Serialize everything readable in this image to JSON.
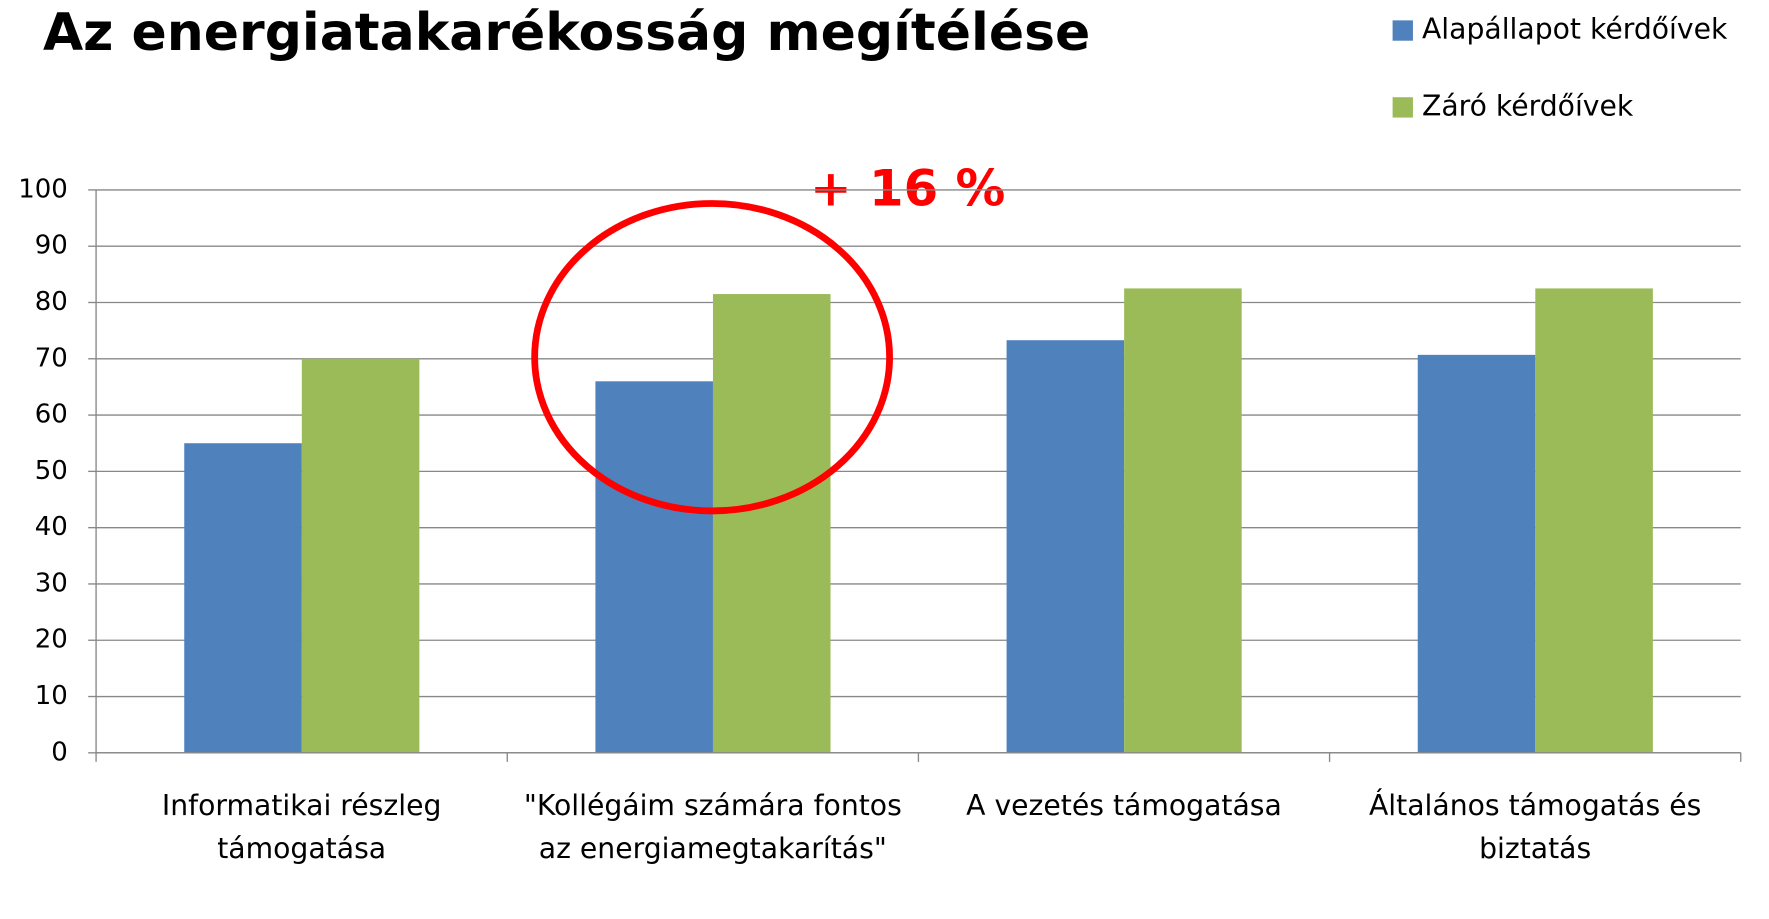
{
  "chart_data": {
    "type": "bar",
    "title": "Az energiatakarékosság megítélése",
    "annotation": "+ 16 %",
    "categories": [
      "Informatikai részleg támogatása",
      "\"Kollégáim számára fontos az energiamegtakarítás\"",
      "A vezetés támogatása",
      "Általános támogatás és biztatás"
    ],
    "series": [
      {
        "name": "Alapállapot kérdőívek",
        "color": "#4f81bd",
        "values": [
          55,
          66,
          73.3,
          70.7
        ]
      },
      {
        "name": "Záró kérdőívek",
        "color": "#9bbb59",
        "values": [
          70,
          81.5,
          82.5,
          82.5
        ]
      }
    ],
    "ylim": [
      0,
      100
    ],
    "yticks": [
      0,
      10,
      20,
      30,
      40,
      50,
      60,
      70,
      80,
      90,
      100
    ],
    "grid": true,
    "legend": "top-right"
  }
}
